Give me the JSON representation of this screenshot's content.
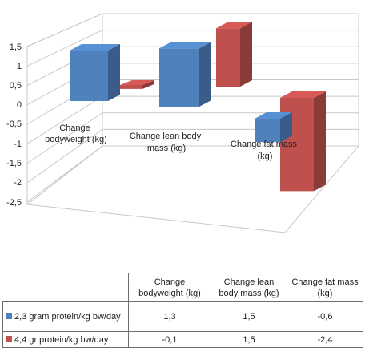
{
  "chart_data": {
    "type": "bar",
    "categories": [
      "Change bodyweight (kg)",
      "Change lean body mass (kg)",
      "Change fat mass (kg)"
    ],
    "series": [
      {
        "name": "2,3 gram protein/kg bw/day",
        "values": [
          1.3,
          1.5,
          -0.6
        ],
        "color": "#4f81bd"
      },
      {
        "name": "4,4 gr protein/kg bw/day",
        "values": [
          -0.1,
          1.5,
          -2.4
        ],
        "color": "#c0504d"
      }
    ],
    "y_ticks": [
      "1,5",
      "1",
      "0,5",
      "0",
      "-0,5",
      "-1",
      "-1,5",
      "-2",
      "-2,5"
    ],
    "ylim": [
      -2.5,
      1.5
    ],
    "grid": true,
    "legend": "data-table",
    "table": {
      "headers": [
        "Change bodyweight (kg)",
        "Change lean body mass (kg)",
        "Change fat mass (kg)"
      ],
      "rows": [
        {
          "label": "2,3 gram protein/kg bw/day",
          "values": [
            "1,3",
            "1,5",
            "-0,6"
          ]
        },
        {
          "label": "4,4 gr protein/kg bw/day",
          "values": [
            "-0,1",
            "1,5",
            "-2,4"
          ]
        }
      ]
    }
  }
}
